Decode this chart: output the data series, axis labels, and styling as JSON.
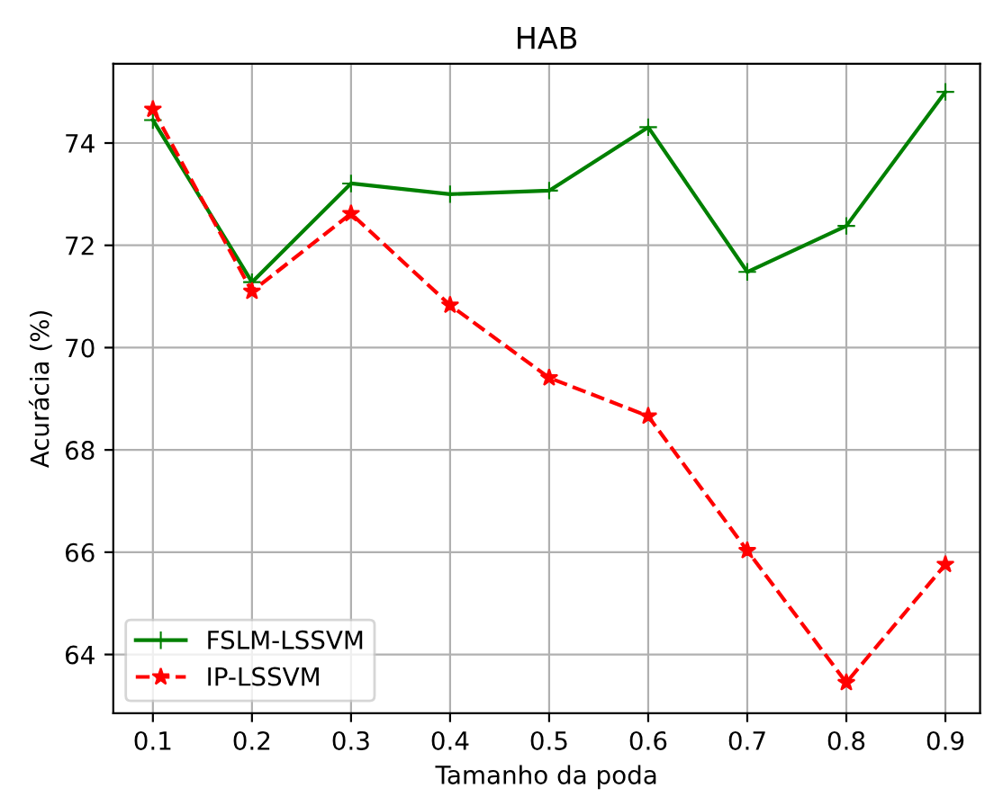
{
  "chart_data": {
    "type": "line",
    "title": "HAB",
    "xlabel": "Tamanho da poda",
    "ylabel": "Acurácia (%)",
    "x": [
      0.1,
      0.2,
      0.3,
      0.4,
      0.5,
      0.6,
      0.7,
      0.8,
      0.9
    ],
    "series": [
      {
        "name": "FSLM-LSSVM",
        "color": "#008000",
        "marker": "plus",
        "line_style": "solid",
        "values": [
          74.45,
          71.28,
          73.21,
          73.0,
          73.07,
          74.31,
          71.48,
          72.38,
          75.0
        ]
      },
      {
        "name": "IP-LSSVM",
        "color": "#ff0000",
        "marker": "star",
        "line_style": "dashed",
        "values": [
          74.66,
          71.1,
          72.62,
          70.83,
          69.41,
          68.66,
          66.03,
          63.45,
          65.76
        ]
      }
    ],
    "xlim": [
      0.06,
      0.935
    ],
    "ylim": [
      62.85,
      75.55
    ],
    "xticks": [
      0.1,
      0.2,
      0.3,
      0.4,
      0.5,
      0.6,
      0.7,
      0.8,
      0.9
    ],
    "yticks": [
      64,
      66,
      68,
      70,
      72,
      74
    ],
    "grid": true,
    "legend": "bottom left"
  }
}
